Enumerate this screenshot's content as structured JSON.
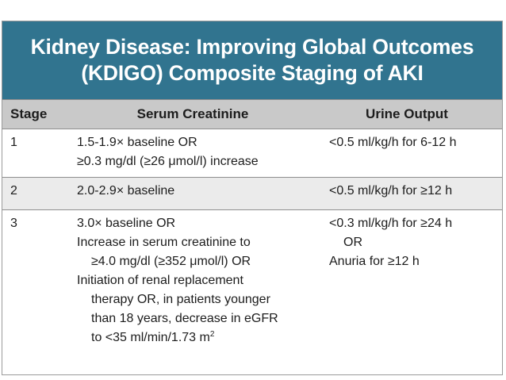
{
  "title": {
    "line1": "Kidney Disease: Improving Global Outcomes",
    "line2": "(KDIGO) Composite Staging of AKI"
  },
  "headers": {
    "stage": "Stage",
    "creatinine": "Serum Creatinine",
    "urine": "Urine Output"
  },
  "rows": [
    {
      "stage": "1",
      "creatinine": [
        "1.5-1.9× baseline OR",
        "≥0.3 mg/dl (≥26 μmol/l) increase"
      ],
      "urine": [
        "<0.5 ml/kg/h for 6-12 h"
      ]
    },
    {
      "stage": "2",
      "creatinine": [
        "2.0-2.9× baseline"
      ],
      "urine": [
        "<0.5 ml/kg/h for ≥12 h"
      ]
    },
    {
      "stage": "3",
      "creatinine": [
        "3.0× baseline OR",
        "Increase in serum creatinine to",
        "≥4.0 mg/dl (≥352 μmol/l) OR",
        "Initiation of renal replacement",
        "therapy OR, in patients younger",
        "than 18 years, decrease in eGFR",
        "to <35 ml/min/1.73 m",
        "2"
      ],
      "urine": [
        "<0.3 ml/kg/h for ≥24 h",
        "OR",
        "Anuria for ≥12 h"
      ]
    }
  ],
  "colors": {
    "title_bg": "#31748f",
    "header_bg": "#c9c9c9",
    "alt_row_bg": "#ebebeb"
  }
}
